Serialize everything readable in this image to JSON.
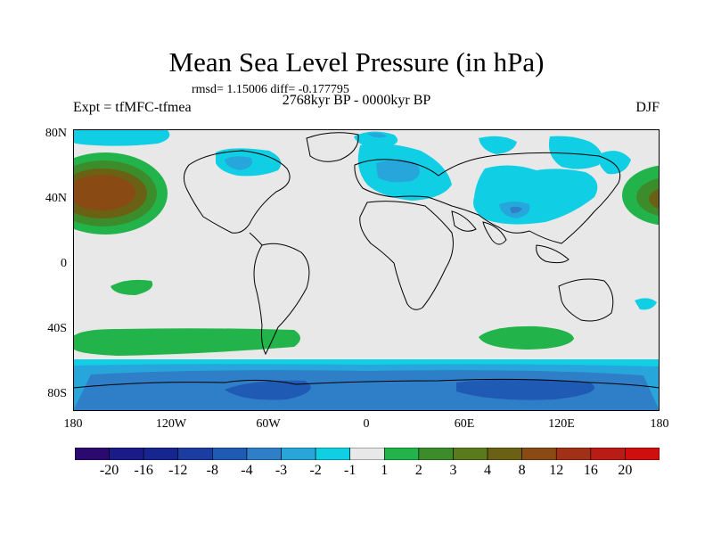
{
  "title": "Mean Sea Level Pressure (in hPa)",
  "stats": "rmsd= 1.15006 diff= -0.177795",
  "period": "2768kyr BP - 0000kyr BP",
  "experiment": "Expt = tfMFC-tfmea",
  "season": "DJF",
  "lat_labels": [
    "80N",
    "40N",
    "0",
    "40S",
    "80S"
  ],
  "lon_labels": [
    "180",
    "120W",
    "60W",
    "0",
    "60E",
    "120E",
    "180"
  ],
  "colorbar": {
    "colors": [
      "#2a0a6e",
      "#1a1a88",
      "#16258f",
      "#1b3ca0",
      "#1f5ab5",
      "#2f7ec8",
      "#27a6dc",
      "#10cfe4",
      "#e8e8e8",
      "#22b44a",
      "#3d8c2c",
      "#5a7a1c",
      "#6b6114",
      "#8a4a14",
      "#a03016",
      "#b81c14",
      "#d10e0e"
    ],
    "labels": [
      "-20",
      "-16",
      "-12",
      "-8",
      "-4",
      "-3",
      "-2",
      "-1",
      "1",
      "2",
      "3",
      "4",
      "8",
      "12",
      "16",
      "20"
    ]
  },
  "colors": {
    "background": "#e8e8e8",
    "light_blue": "#10cfe4",
    "mid_blue": "#27a6dc",
    "blue": "#2f7ec8",
    "dark_blue": "#1f5ab5",
    "green": "#22b44a",
    "olive_green": "#3d8c2c",
    "brown": "#6b6114",
    "dark_brown": "#8a4a14"
  }
}
